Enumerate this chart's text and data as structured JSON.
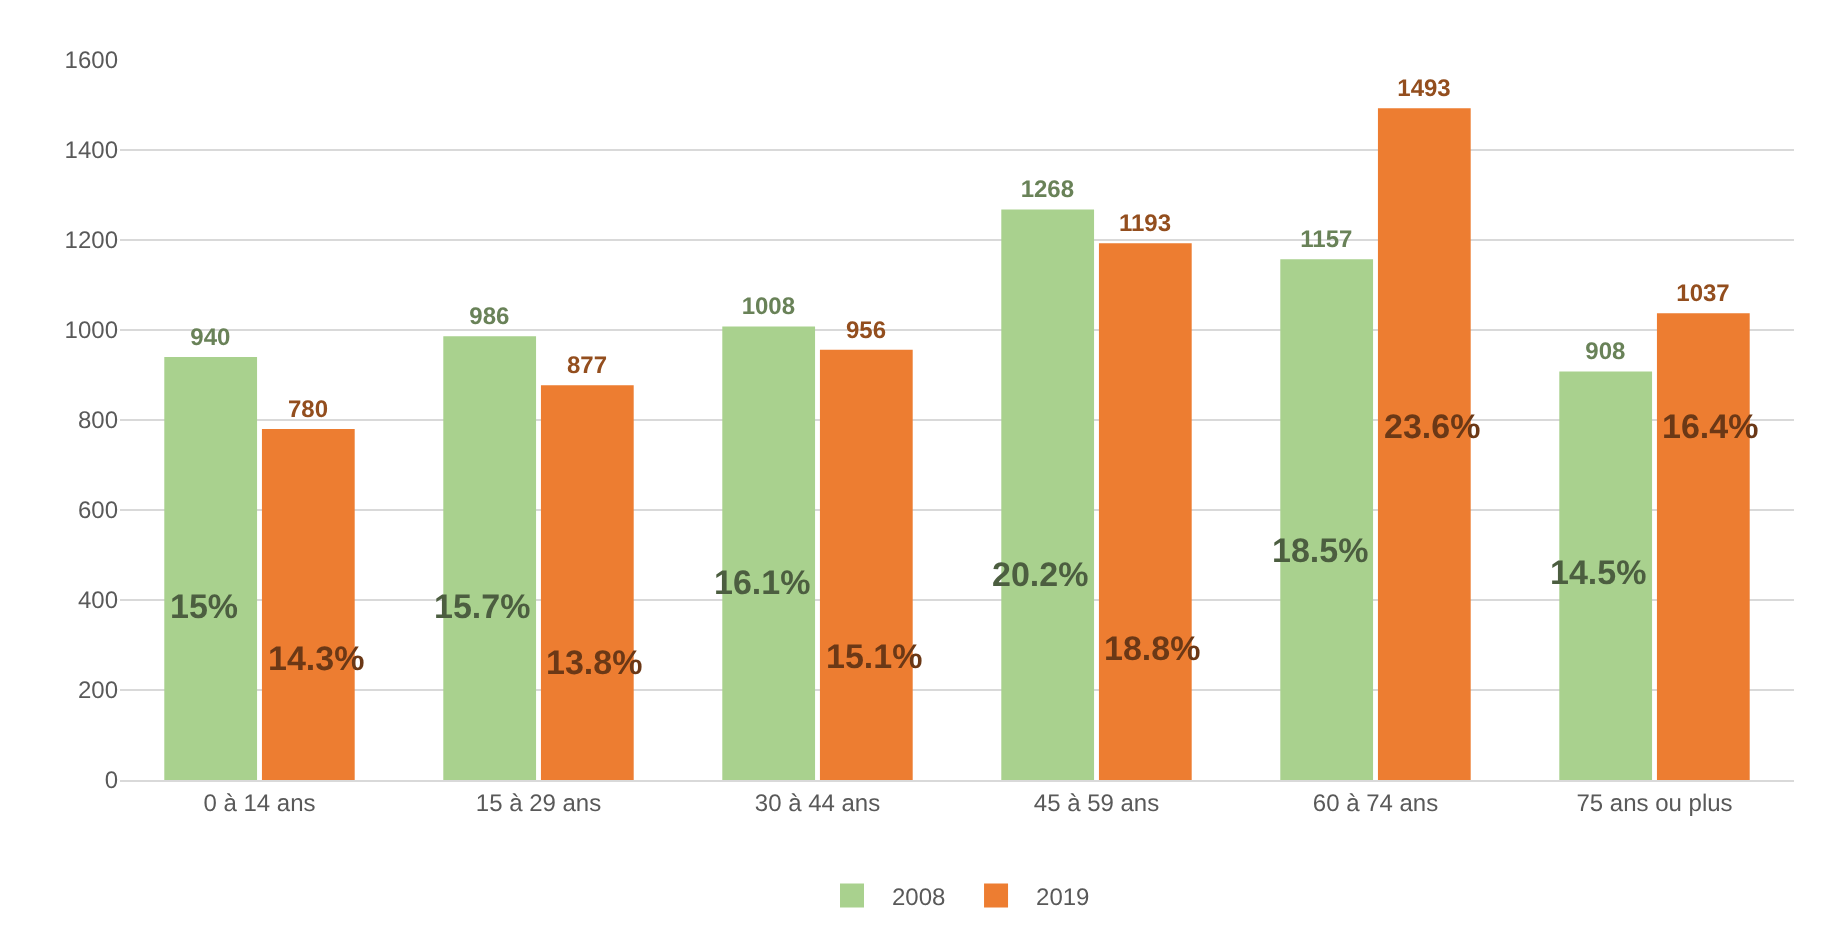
{
  "chart_data": {
    "type": "bar",
    "categories": [
      "0 à 14 ans",
      "15 à 29 ans",
      "30 à 44 ans",
      "45 à 59 ans",
      "60 à 74 ans",
      "75 ans ou plus"
    ],
    "series": [
      {
        "name": "2008",
        "color": "#a9d18e",
        "values": [
          940,
          986,
          1008,
          1268,
          1157,
          908
        ]
      },
      {
        "name": "2019",
        "color": "#ed7d31",
        "values": [
          780,
          877,
          956,
          1193,
          1493,
          1037
        ]
      }
    ],
    "data_labels": true,
    "annotations": [
      {
        "text": "15%",
        "x": "0 à 14 ans",
        "y": 385
      },
      {
        "text": "14.3%",
        "x": "0 à 14 ans",
        "y": 269
      },
      {
        "text": "15.7%",
        "x": "15 à 29 ans",
        "y": 385
      },
      {
        "text": "13.8%",
        "x": "15 à 29 ans",
        "y": 260
      },
      {
        "text": "16.1%",
        "x": "30 à 44 ans",
        "y": 436
      },
      {
        "text": "15.1%",
        "x": "30 à 44 ans",
        "y": 274
      },
      {
        "text": "20.2%",
        "x": "45 à 59 ans",
        "y": 455
      },
      {
        "text": "18.8%",
        "x": "45 à 59 ans",
        "y": 292
      },
      {
        "text": "18.5%",
        "x": "60 à 74 ans",
        "y": 510
      },
      {
        "text": "23.6%",
        "x": "60 à 74 ans",
        "y": 784
      },
      {
        "text": "14.5%",
        "x": "75 ans ou plus",
        "y": 459
      },
      {
        "text": "16.4%",
        "x": "75 ans ou plus",
        "y": 784
      }
    ],
    "ylim": [
      0,
      1600
    ],
    "yticks": [
      0,
      200,
      400,
      600,
      800,
      1000,
      1200,
      1400,
      1600
    ],
    "grid": "y",
    "legend": "bottom"
  }
}
